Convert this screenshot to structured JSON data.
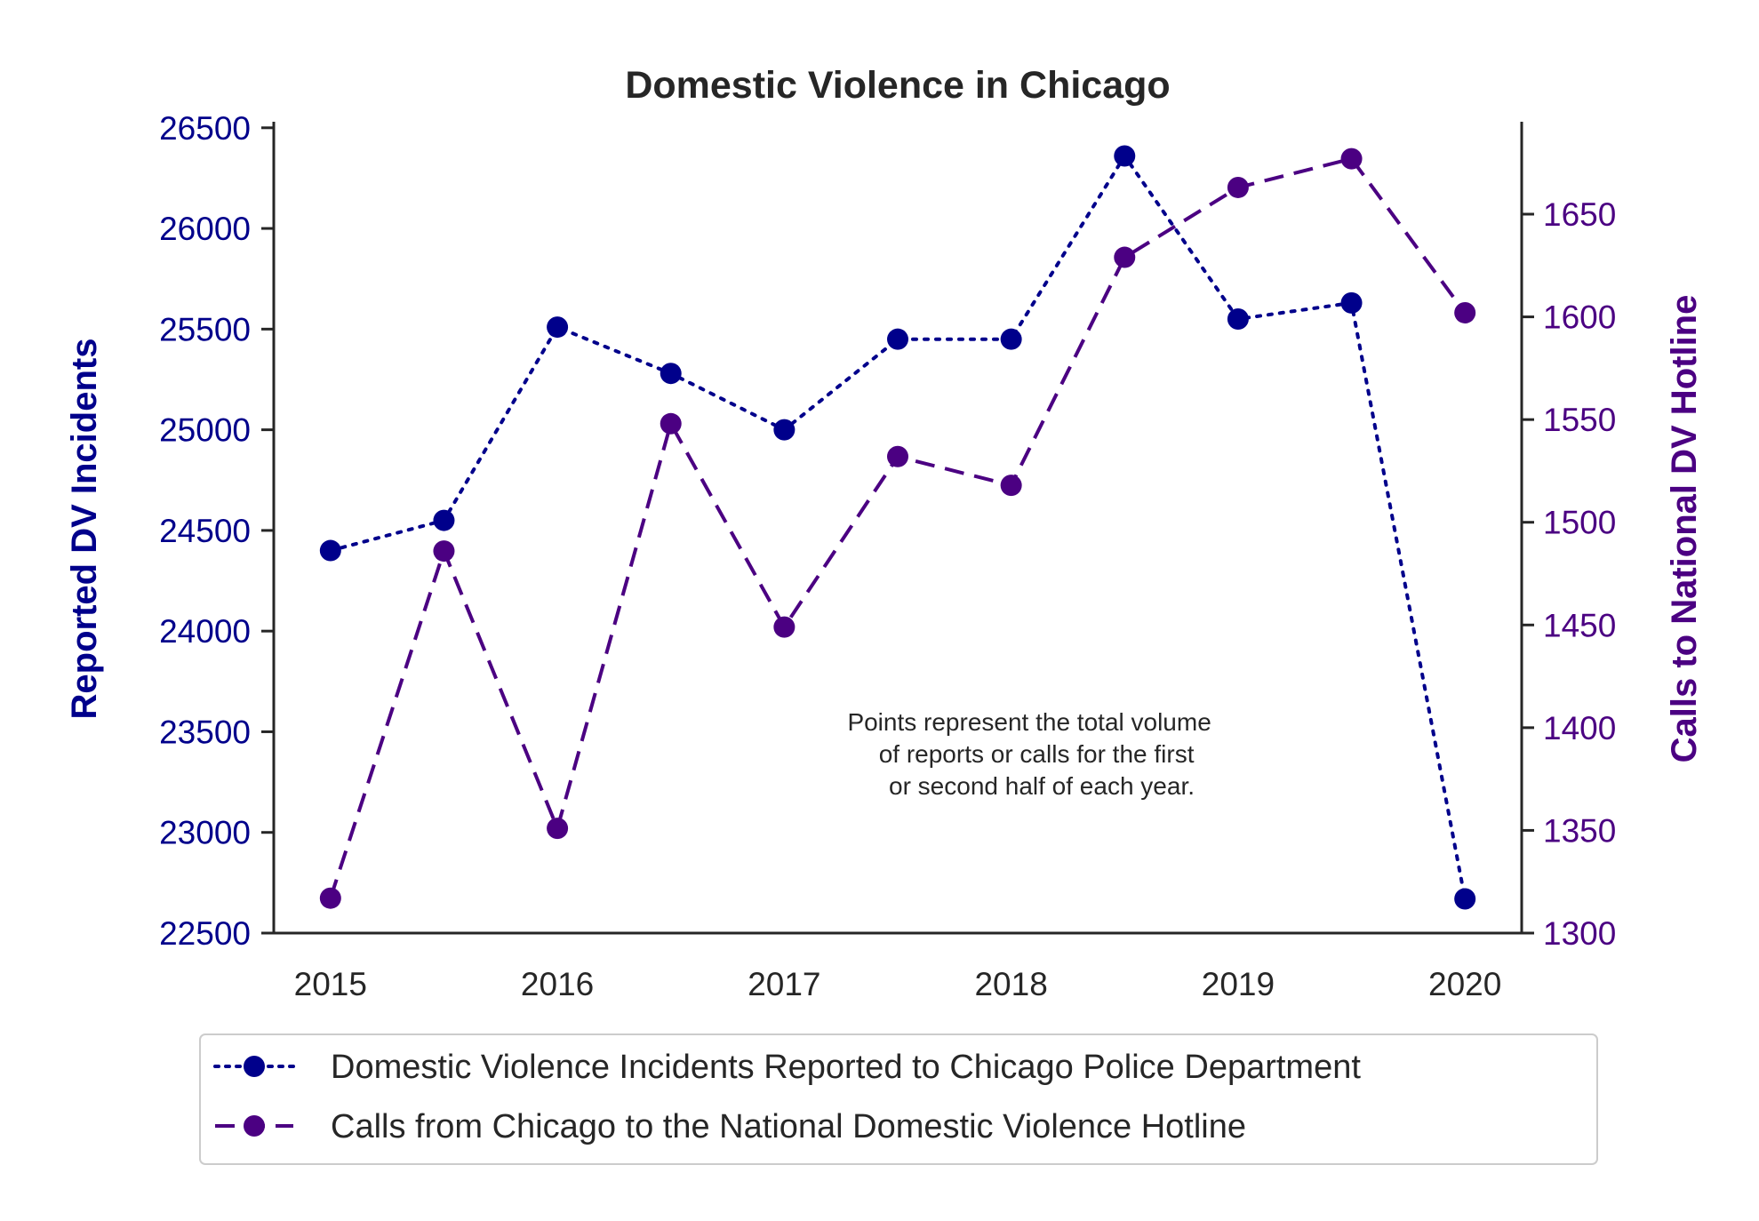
{
  "chart_data": {
    "type": "line",
    "title": "Domestic Violence in Chicago",
    "xlabel": "",
    "xlim": [
      2014.75,
      2020.25
    ],
    "x_ticks": [
      "2015",
      "2016",
      "2017",
      "2018",
      "2019",
      "2020"
    ],
    "left_axis": {
      "label": "Reported DV Incidents",
      "ylim": [
        22500,
        26530
      ],
      "ticks": [
        "22500",
        "23000",
        "23500",
        "24000",
        "24500",
        "25000",
        "25500",
        "26000",
        "26500"
      ],
      "color": "#00008b"
    },
    "right_axis": {
      "label": "Calls to National DV Hotline",
      "ylim": [
        1300,
        1695
      ],
      "ticks": [
        "1300",
        "1350",
        "1400",
        "1450",
        "1500",
        "1550",
        "1600",
        "1650"
      ],
      "color": "#4b0082"
    },
    "series": [
      {
        "name": "Domestic Violence Incidents Reported to Chicago Police Department",
        "axis": "left",
        "style": "dotted",
        "color": "#00008b",
        "x": [
          2015,
          2015.5,
          2016,
          2016.5,
          2017,
          2017.5,
          2018,
          2018.5,
          2019,
          2019.5,
          2020
        ],
        "values": [
          24400,
          24550,
          25510,
          25280,
          25000,
          25450,
          25450,
          26360,
          25550,
          25630,
          22670
        ]
      },
      {
        "name": "Calls from Chicago to the National Domestic Violence Hotline",
        "axis": "right",
        "style": "dashed",
        "color": "#4b0082",
        "x": [
          2015,
          2015.5,
          2016,
          2016.5,
          2017,
          2017.5,
          2018,
          2018.5,
          2019,
          2019.5,
          2020
        ],
        "values": [
          1317,
          1486,
          1351,
          1548,
          1449,
          1532,
          1518,
          1629,
          1663,
          1677,
          1602
        ]
      }
    ],
    "annotation": [
      "Points represent the total volume",
      "of reports or calls for the first",
      "or second half of each year."
    ],
    "grid": false,
    "legend_position": "bottom-center"
  }
}
